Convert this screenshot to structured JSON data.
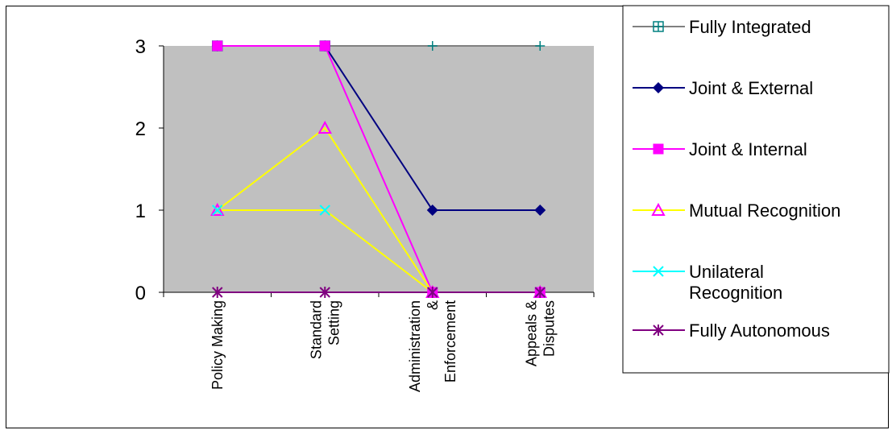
{
  "chart_data": {
    "type": "line",
    "title": "",
    "xlabel": "",
    "ylabel": "",
    "categories": [
      [
        "Policy Making"
      ],
      [
        "Standard",
        "Setting"
      ],
      [
        "Administration",
        "&",
        "Enforcement"
      ],
      [
        "Appeals &",
        "Disputes"
      ]
    ],
    "ylim": [
      0,
      3
    ],
    "yticks": [
      "0",
      "1",
      "2",
      "3"
    ],
    "plot_background": "#c0c0c0",
    "grid": false,
    "legend_position": "right",
    "series": [
      {
        "name": "Fully Integrated",
        "label_lines": [
          "Fully Integrated"
        ],
        "values": [
          3,
          3,
          3,
          3
        ],
        "line_color": "#808080",
        "marker": "plus-square",
        "marker_color": "#008080"
      },
      {
        "name": "Joint & External",
        "label_lines": [
          "Joint & External"
        ],
        "values": [
          3,
          3,
          1,
          1
        ],
        "line_color": "#000080",
        "marker": "diamond",
        "marker_color": "#000080"
      },
      {
        "name": "Joint & Internal",
        "label_lines": [
          "Joint & Internal"
        ],
        "values": [
          3,
          3,
          0,
          0
        ],
        "line_color": "#ff00ff",
        "marker": "square",
        "marker_color": "#ff00ff"
      },
      {
        "name": "Mutual Recognition",
        "label_lines": [
          "Mutual Recognition"
        ],
        "values": [
          1,
          2,
          0,
          0
        ],
        "line_color": "#ffff00",
        "marker": "triangle",
        "marker_color": "#ff00ff"
      },
      {
        "name": "Unilateral Recognition",
        "label_lines": [
          "Unilateral",
          "Recognition"
        ],
        "values": [
          1,
          1,
          0,
          0
        ],
        "line_color": "#ffff00",
        "marker": "x",
        "marker_color": "#00ffff"
      },
      {
        "name": "Fully Autonomous",
        "label_lines": [
          "Fully Autonomous"
        ],
        "values": [
          0,
          0,
          0,
          0
        ],
        "line_color": "#800080",
        "marker": "star",
        "marker_color": "#800080"
      }
    ]
  }
}
